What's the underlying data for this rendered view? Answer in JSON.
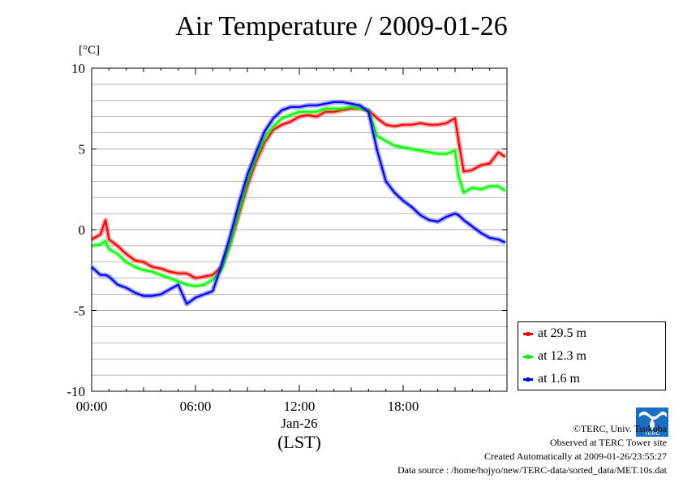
{
  "chart_data": {
    "type": "line",
    "title": "Air Temperature / 2009-01-26",
    "ylabel": "[°C]",
    "xlabel": "(LST)",
    "x_date_label": "Jan-26",
    "ylim": [
      -10,
      10
    ],
    "xlim": [
      0,
      24
    ],
    "y_ticks": [
      "10",
      "5",
      "0",
      "-5",
      "-10"
    ],
    "y_tick_values": [
      10,
      5,
      0,
      -5,
      -10
    ],
    "x_ticks": [
      "00:00",
      "06:00",
      "12:00",
      "18:00"
    ],
    "x_tick_values": [
      0,
      6,
      12,
      18
    ],
    "grid": true,
    "legend_position": "bottom-right outside",
    "x": [
      0.0,
      0.5,
      0.8,
      1.0,
      1.5,
      2.0,
      2.5,
      3.0,
      3.5,
      4.0,
      4.5,
      5.0,
      5.5,
      6.0,
      6.5,
      7.0,
      7.5,
      8.0,
      8.5,
      9.0,
      9.5,
      10.0,
      10.5,
      11.0,
      11.5,
      12.0,
      12.5,
      13.0,
      13.5,
      14.0,
      14.5,
      15.0,
      15.5,
      16.0,
      16.5,
      17.0,
      17.5,
      18.0,
      18.5,
      19.0,
      19.5,
      20.0,
      20.5,
      21.0,
      21.2,
      21.5,
      22.0,
      22.5,
      23.0,
      23.5,
      23.9
    ],
    "series": [
      {
        "name": "at 29.5 m",
        "color": "#ff0000",
        "values": [
          -0.6,
          -0.3,
          0.6,
          -0.6,
          -1.0,
          -1.5,
          -1.9,
          -2.0,
          -2.3,
          -2.4,
          -2.6,
          -2.7,
          -2.7,
          -3.0,
          -2.9,
          -2.8,
          -2.3,
          -0.9,
          0.9,
          2.7,
          4.2,
          5.4,
          6.2,
          6.5,
          6.7,
          7.0,
          7.1,
          7.0,
          7.3,
          7.3,
          7.4,
          7.5,
          7.5,
          7.4,
          6.9,
          6.5,
          6.4,
          6.5,
          6.5,
          6.6,
          6.5,
          6.5,
          6.6,
          6.9,
          5.5,
          3.6,
          3.7,
          4.0,
          4.1,
          4.8,
          4.5
        ]
      },
      {
        "name": "at 12.3 m",
        "color": "#00ff00",
        "values": [
          -1.0,
          -0.9,
          -0.7,
          -1.2,
          -1.5,
          -2.0,
          -2.3,
          -2.5,
          -2.6,
          -2.8,
          -3.0,
          -3.2,
          -3.4,
          -3.5,
          -3.4,
          -3.1,
          -2.5,
          -0.9,
          1.1,
          3.0,
          4.5,
          5.7,
          6.4,
          6.9,
          7.1,
          7.3,
          7.3,
          7.3,
          7.5,
          7.5,
          7.5,
          7.6,
          7.5,
          7.4,
          5.8,
          5.5,
          5.2,
          5.1,
          5.0,
          4.9,
          4.8,
          4.7,
          4.7,
          4.9,
          3.3,
          2.3,
          2.6,
          2.5,
          2.7,
          2.7,
          2.4
        ]
      },
      {
        "name": "at 1.6 m",
        "color": "#0000ff",
        "values": [
          -2.3,
          -2.8,
          -2.8,
          -2.9,
          -3.4,
          -3.6,
          -3.9,
          -4.1,
          -4.1,
          -4.0,
          -3.7,
          -3.4,
          -4.6,
          -4.2,
          -4.0,
          -3.8,
          -2.2,
          -0.4,
          1.6,
          3.4,
          4.8,
          6.1,
          6.9,
          7.4,
          7.6,
          7.6,
          7.7,
          7.7,
          7.8,
          7.9,
          7.9,
          7.8,
          7.7,
          7.3,
          4.9,
          3.0,
          2.3,
          1.8,
          1.4,
          0.9,
          0.6,
          0.5,
          0.8,
          1.0,
          0.9,
          0.6,
          0.2,
          -0.2,
          -0.5,
          -0.6,
          -0.8
        ]
      }
    ]
  },
  "legend": {
    "items": [
      {
        "label": "at 29.5 m",
        "color": "#ff0000"
      },
      {
        "label": "at 12.3 m",
        "color": "#00ff00"
      },
      {
        "label": "at 1.6 m",
        "color": "#0000ff"
      }
    ]
  },
  "footer": {
    "copyright": "©TERC, Univ. Tsukuba",
    "site": "Observed at TERC Tower site",
    "created": "Created Automatically at 2009-01-26/23:55:27",
    "source": "Data source : /home/hojyo/new/TERC-data/sorted_data/MET.10s.dat",
    "logo_text": "TERC"
  }
}
